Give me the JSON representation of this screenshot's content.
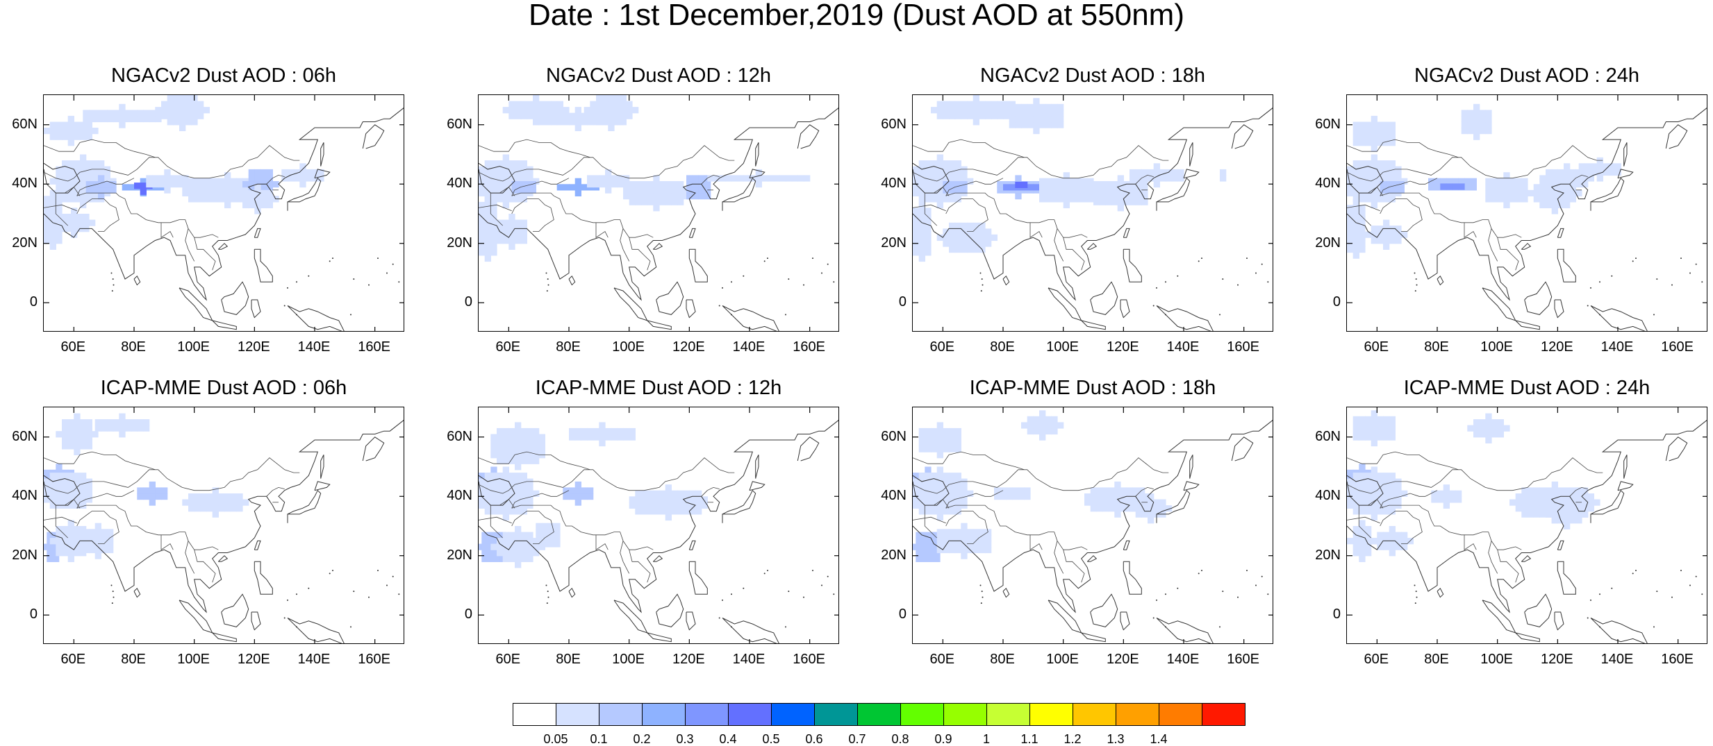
{
  "title": "Date : 1st December,2019 (Dust AOD at 550nm)",
  "panels": [
    {
      "title": "NGACv2 Dust AOD : 06h"
    },
    {
      "title": "NGACv2 Dust AOD : 12h"
    },
    {
      "title": "NGACv2 Dust AOD : 18h"
    },
    {
      "title": "NGACv2 Dust AOD : 24h"
    },
    {
      "title": "ICAP-MME Dust AOD : 06h"
    },
    {
      "title": "ICAP-MME Dust AOD : 12h"
    },
    {
      "title": "ICAP-MME Dust AOD : 18h"
    },
    {
      "title": "ICAP-MME Dust AOD : 24h"
    }
  ],
  "axes": {
    "lat_labels": [
      "60N",
      "40N",
      "20N",
      "0"
    ],
    "lat_values": [
      60,
      40,
      20,
      0
    ],
    "lon_labels": [
      "60E",
      "80E",
      "100E",
      "120E",
      "140E",
      "160E"
    ],
    "lon_values": [
      60,
      80,
      100,
      120,
      140,
      160
    ],
    "lon_range": [
      50,
      170
    ],
    "lat_range": [
      -10,
      70
    ]
  },
  "colorbar": {
    "labels": [
      "0.05",
      "0.1",
      "0.2",
      "0.3",
      "0.4",
      "0.5",
      "0.6",
      "0.7",
      "0.8",
      "0.9",
      "1",
      "1.1",
      "1.2",
      "1.3",
      "1.4"
    ],
    "colors": [
      "#ffffff",
      "#d6e2ff",
      "#b5c9ff",
      "#8eb2ff",
      "#7f96ff",
      "#6370ff",
      "#0063ff",
      "#009696",
      "#00c633",
      "#63ff00",
      "#96ff00",
      "#c6ff33",
      "#ffff00",
      "#ffc600",
      "#ffa000",
      "#ff7c00",
      "#ff1900"
    ]
  }
}
